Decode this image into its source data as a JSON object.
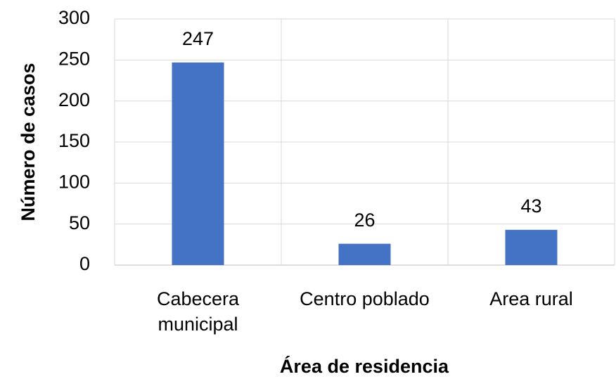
{
  "chart_data": {
    "type": "bar",
    "x_label": "Área de residencia",
    "y_label": "Número de casos",
    "categories": [
      "Cabecera municipal",
      "Centro poblado",
      "Area rural"
    ],
    "values": [
      247,
      26,
      43
    ],
    "color": "#4472c4",
    "ylim": [
      0,
      300
    ],
    "yticks": [
      0,
      50,
      100,
      150,
      200,
      250,
      300
    ],
    "grid": true
  }
}
